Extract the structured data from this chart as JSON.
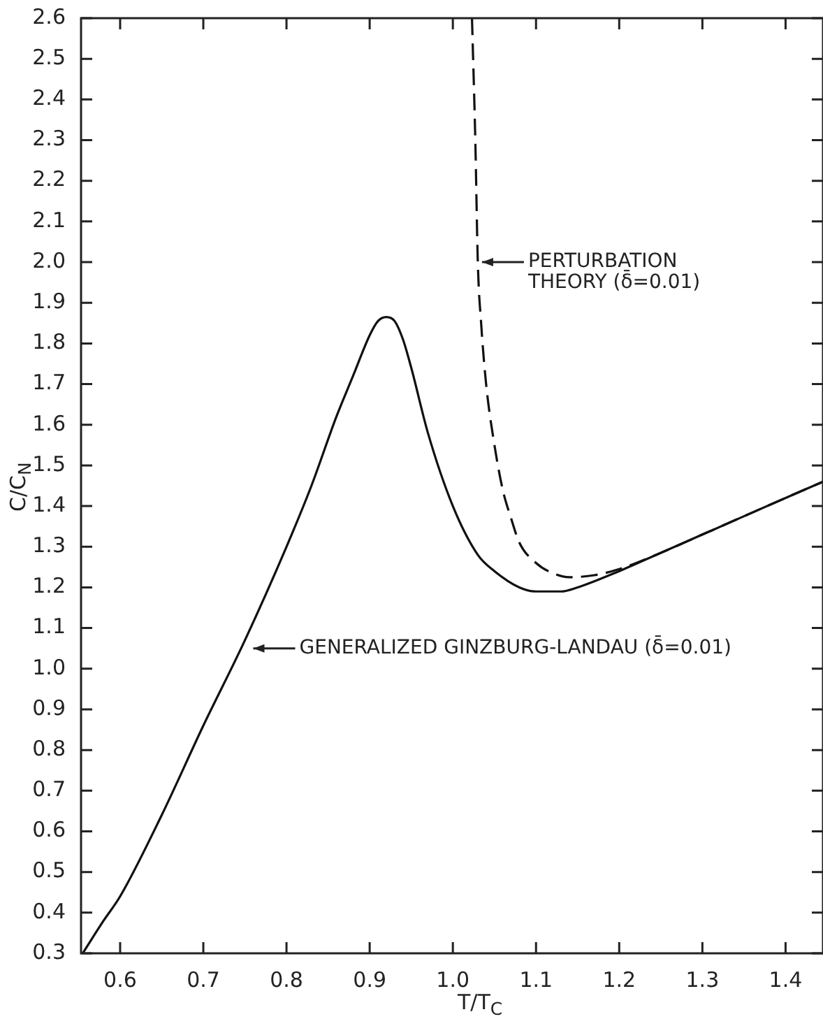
{
  "chart_data": {
    "type": "line",
    "xlabel": "T/T$_{C}$",
    "ylabel": "C/C$_{N}$",
    "xlim": [
      0.553,
      1.445
    ],
    "xticks": [
      0.6,
      0.7,
      0.8,
      0.9,
      {
        "value": 1,
        "label": "1.0"
      },
      1.1,
      1.2,
      1.3,
      1.4
    ],
    "ylim": [
      0.3,
      2.6
    ],
    "yticks": [
      0.3,
      0.4,
      0.5,
      0.6,
      0.7,
      0.8,
      0.9,
      {
        "value": 1,
        "label": "1.0"
      },
      1.1,
      1.2,
      1.3,
      1.4,
      1.5,
      1.6,
      1.7,
      1.8,
      1.9,
      {
        "value": 2,
        "label": "2.0"
      },
      2.1,
      2.2,
      2.3,
      2.4,
      2.5,
      2.6
    ],
    "grid": false,
    "legend": false,
    "marker": "none",
    "series": [
      {
        "color": "#111111",
        "line_style": "solid",
        "x": [
          0.555,
          0.58,
          0.6,
          0.65,
          0.7,
          0.75,
          0.8,
          0.83,
          0.86,
          0.88,
          0.9,
          0.91,
          0.92,
          0.93,
          0.94,
          0.95,
          0.97,
          1.0,
          1.03,
          1.05,
          1.08,
          1.1,
          1.13,
          1.15,
          1.2,
          1.25,
          1.3,
          1.35,
          1.4,
          1.445
        ],
        "values": [
          0.3,
          0.38,
          0.44,
          0.64,
          0.86,
          1.07,
          1.3,
          1.45,
          1.62,
          1.72,
          1.82,
          1.855,
          1.865,
          1.855,
          1.81,
          1.74,
          1.58,
          1.4,
          1.28,
          1.24,
          1.2,
          1.19,
          1.19,
          1.2,
          1.24,
          1.285,
          1.33,
          1.375,
          1.42,
          1.46
        ]
      },
      {
        "color": "#111111",
        "line_style": "dashed",
        "x": [
          1.023,
          1.027,
          1.03,
          1.034,
          1.04,
          1.05,
          1.06,
          1.07,
          1.08,
          1.1,
          1.12,
          1.14,
          1.17,
          1.2,
          1.25,
          1.3,
          1.35,
          1.4,
          1.445
        ],
        "values": [
          2.6,
          2.3,
          2.0,
          1.85,
          1.7,
          1.55,
          1.44,
          1.37,
          1.31,
          1.26,
          1.235,
          1.225,
          1.23,
          1.245,
          1.285,
          1.33,
          1.375,
          1.42,
          1.46
        ]
      }
    ],
    "annotations": [
      {
        "text": "PERTURBATION\nTHEORY (δ̄=0.01)",
        "x": 1.03,
        "y": 2.0
      },
      {
        "text": "GENERALIZED GINZBURG-LANDAU (δ̄=0.01)",
        "x": 0.755,
        "y": 1.05
      }
    ]
  }
}
